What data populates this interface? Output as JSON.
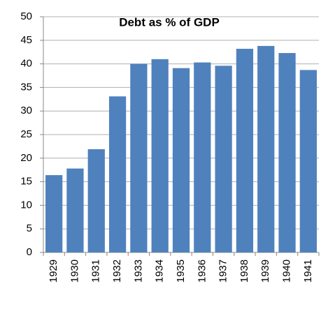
{
  "chart_data": {
    "type": "bar",
    "title": "Debt as % of GDP",
    "categories": [
      "1929",
      "1930",
      "1931",
      "1932",
      "1933",
      "1934",
      "1935",
      "1936",
      "1937",
      "1938",
      "1939",
      "1940",
      "1941"
    ],
    "values": [
      16.4,
      17.8,
      21.9,
      33.1,
      40.0,
      41.0,
      39.1,
      40.3,
      39.6,
      43.2,
      43.8,
      42.3,
      38.7
    ],
    "color": "#4f81bd",
    "ylim": [
      0,
      50
    ],
    "yticks": [
      0,
      5,
      10,
      15,
      20,
      25,
      30,
      35,
      40,
      45,
      50
    ],
    "grid": true
  }
}
